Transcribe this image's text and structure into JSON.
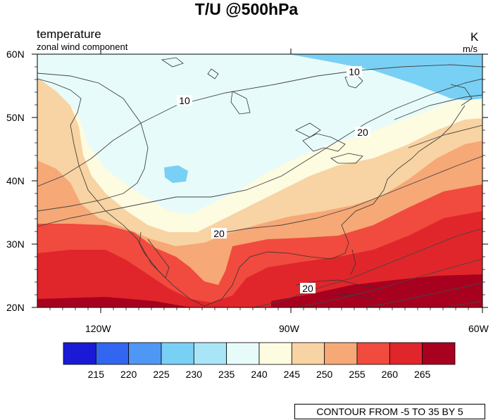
{
  "title": "T/U @500hPa",
  "left_title_1": "temperature",
  "left_title_2": "zonal wind component",
  "right_title_1": "K",
  "right_title_2": "m/s",
  "lat_labels": [
    "60N",
    "50N",
    "40N",
    "30N",
    "20N"
  ],
  "lon_labels": [
    "120W",
    "90W",
    "60W"
  ],
  "contour_labels": [
    "10",
    "10",
    "20",
    "20",
    "20"
  ],
  "colorbar": {
    "colors": [
      "#1a1ad6",
      "#3366f0",
      "#4f97f5",
      "#79d0f5",
      "#a8e6f7",
      "#e8fbfb",
      "#fdfbe0",
      "#f8d3a3",
      "#f6a876",
      "#f04b3e",
      "#e0262b",
      "#a8001f"
    ],
    "labels": [
      "215",
      "220",
      "225",
      "230",
      "235",
      "240",
      "245",
      "250",
      "255",
      "260",
      "265"
    ]
  },
  "contour_info": "CONTOUR FROM -5 TO 35 BY 5"
}
